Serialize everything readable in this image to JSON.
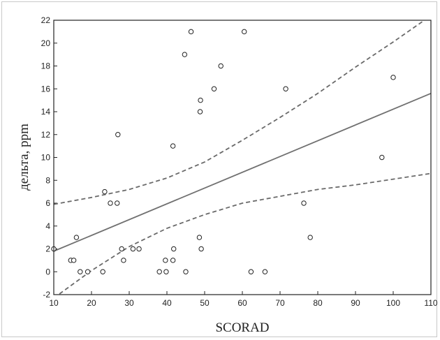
{
  "chart_data": {
    "type": "scatter",
    "title": "",
    "xlabel": "SCORAD",
    "ylabel": "дельта, ppm",
    "xlim": [
      10,
      110
    ],
    "ylim": [
      -2,
      22
    ],
    "x_ticks": [
      10,
      20,
      30,
      40,
      50,
      60,
      70,
      80,
      90,
      100,
      110
    ],
    "y_ticks": [
      -2,
      0,
      2,
      4,
      6,
      8,
      10,
      12,
      14,
      16,
      18,
      20,
      22
    ],
    "grid": false,
    "series": [
      {
        "kind": "points",
        "marker": "open-circle",
        "x": [
          10,
          14.5,
          15.3,
          16,
          17,
          19,
          23,
          23.5,
          25,
          26.8,
          27,
          28,
          28.5,
          31,
          32.6,
          38,
          39.6,
          39.8,
          41.6,
          41.6,
          41.8,
          44.7,
          45,
          46.4,
          48.6,
          48.8,
          48.9,
          49.1,
          52.5,
          54.3,
          60.5,
          62.3,
          66,
          71.5,
          76.3,
          78,
          97,
          100
        ],
        "y": [
          2,
          1,
          1,
          3,
          0,
          0,
          0,
          7,
          6,
          6,
          12,
          2,
          1,
          2,
          2,
          0,
          1,
          0,
          11,
          1,
          2,
          19,
          0,
          21,
          3,
          14,
          15,
          2,
          16,
          18,
          21,
          0,
          0,
          16,
          6,
          3,
          10,
          17
        ]
      },
      {
        "kind": "regression-line",
        "x": [
          10,
          110
        ],
        "y": [
          1.8,
          15.6
        ]
      },
      {
        "kind": "confidence-upper",
        "x": [
          10,
          20,
          30,
          40,
          50,
          60,
          70,
          80,
          90,
          100,
          110
        ],
        "y": [
          5.9,
          6.5,
          7.2,
          8.2,
          9.6,
          11.5,
          13.5,
          15.6,
          17.9,
          20.1,
          22.4
        ]
      },
      {
        "kind": "confidence-lower",
        "x": [
          10,
          20,
          30,
          40,
          50,
          60,
          70,
          80,
          90,
          100,
          110
        ],
        "y": [
          -2.3,
          0.1,
          2.2,
          3.8,
          5.0,
          6.0,
          6.6,
          7.2,
          7.6,
          8.1,
          8.6
        ]
      }
    ]
  },
  "colors": {
    "axis": "#222222",
    "points": "#222222",
    "regression": "#707070",
    "confidence": "#6a6a6a"
  }
}
